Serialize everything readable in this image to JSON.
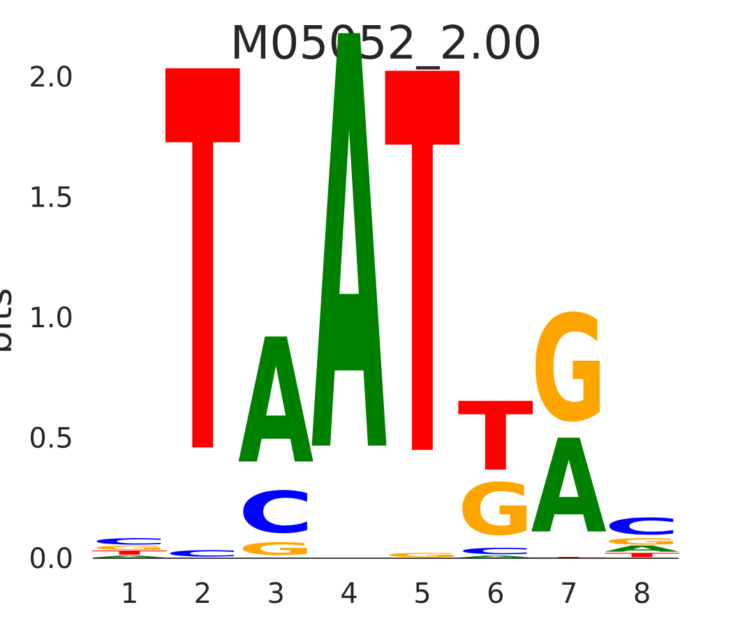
{
  "chart_data": {
    "type": "sequence-logo",
    "title": "M05052_2.00",
    "xlabel": "",
    "ylabel": "bits",
    "ylim": [
      0,
      2.0
    ],
    "yticks": [
      "0.0",
      "0.5",
      "1.0",
      "1.5",
      "2.0"
    ],
    "categories": [
      "1",
      "2",
      "3",
      "4",
      "5",
      "6",
      "7",
      "8"
    ],
    "colors": {
      "A": "#008000",
      "C": "#0000ff",
      "G": "#ffa500",
      "T": "#ff0000"
    },
    "positions": [
      {
        "position": "1",
        "letters": [
          {
            "base": "A",
            "bits": 0.01
          },
          {
            "base": "T",
            "bits": 0.02
          },
          {
            "base": "G",
            "bits": 0.02
          },
          {
            "base": "C",
            "bits": 0.03
          }
        ]
      },
      {
        "position": "2",
        "letters": [
          {
            "base": "C",
            "bits": 0.03
          },
          {
            "base": "T",
            "bits": 1.82
          }
        ]
      },
      {
        "position": "3",
        "letters": [
          {
            "base": "G",
            "bits": 0.06
          },
          {
            "base": "C",
            "bits": 0.2
          },
          {
            "base": "A",
            "bits": 0.6
          }
        ]
      },
      {
        "position": "4",
        "letters": [
          {
            "base": "A",
            "bits": 1.98
          }
        ]
      },
      {
        "position": "5",
        "letters": [
          {
            "base": "G",
            "bits": 0.02
          },
          {
            "base": "T",
            "bits": 1.82
          }
        ]
      },
      {
        "position": "6",
        "letters": [
          {
            "base": "A",
            "bits": 0.01
          },
          {
            "base": "C",
            "bits": 0.03
          },
          {
            "base": "G",
            "bits": 0.25
          },
          {
            "base": "T",
            "bits": 0.33
          }
        ]
      },
      {
        "position": "7",
        "letters": [
          {
            "base": "T",
            "bits": 0.005
          },
          {
            "base": "A",
            "bits": 0.45
          },
          {
            "base": "G",
            "bits": 0.51
          }
        ]
      },
      {
        "position": "8",
        "letters": [
          {
            "base": "T",
            "bits": 0.02
          },
          {
            "base": "A",
            "bits": 0.03
          },
          {
            "base": "G",
            "bits": 0.03
          },
          {
            "base": "C",
            "bits": 0.08
          }
        ]
      }
    ]
  }
}
